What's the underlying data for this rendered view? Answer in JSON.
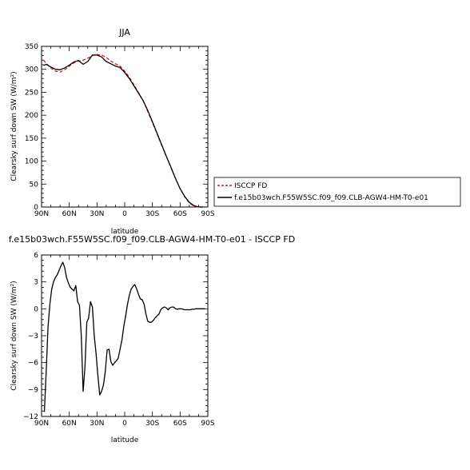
{
  "chart_data": [
    {
      "type": "line",
      "title": "JJA",
      "xlabel": "latitude",
      "ylabel": "Clearsky surf down SW (W/m²)",
      "xlim": [
        90,
        -90
      ],
      "ylim": [
        0,
        350
      ],
      "xticks": [
        90,
        60,
        30,
        0,
        -30,
        -60,
        -90
      ],
      "xtick_labels": [
        "90N",
        "60N",
        "30N",
        "0",
        "30S",
        "60S",
        "90S"
      ],
      "yticks": [
        0,
        50,
        100,
        150,
        200,
        250,
        300,
        350
      ],
      "ytick_labels": [
        "0",
        "50",
        "100",
        "150",
        "200",
        "250",
        "300",
        "350"
      ],
      "grid": false,
      "legend": "right, outside plot",
      "series": [
        {
          "name": "ISCCP FD",
          "color": "#e0161b",
          "dash": true,
          "x": [
            88,
            85,
            80,
            75,
            70,
            65,
            60,
            55,
            50,
            45,
            40,
            35,
            30,
            25,
            20,
            15,
            10,
            5,
            0,
            -5,
            -10,
            -15,
            -20,
            -25,
            -30,
            -35,
            -40,
            -45,
            -50,
            -55,
            -60,
            -65,
            -70,
            -75,
            -78,
            -82,
            -85
          ],
          "values": [
            320,
            313,
            303,
            296,
            294,
            299,
            307,
            314,
            318,
            320,
            324,
            330,
            332,
            331,
            326,
            318,
            312,
            307,
            296,
            283,
            266,
            249,
            231,
            208,
            184,
            160,
            135,
            110,
            86,
            62,
            40,
            22,
            9,
            2,
            0.5,
            0,
            0
          ]
        },
        {
          "name": "f.e15b03wch.F55W5SC.f09_f09.CLB-AGW4-HM-T0-e01",
          "color": "#000000",
          "dash": false,
          "x": [
            88,
            85,
            80,
            75,
            70,
            65,
            60,
            55,
            50,
            45,
            40,
            35,
            30,
            25,
            20,
            15,
            10,
            5,
            0,
            -5,
            -10,
            -15,
            -20,
            -25,
            -30,
            -35,
            -40,
            -45,
            -50,
            -55,
            -60,
            -65,
            -70,
            -75,
            -78,
            -82,
            -85
          ],
          "values": [
            308,
            311,
            305,
            300,
            299,
            303,
            309,
            316,
            319,
            311,
            317,
            331,
            331,
            327,
            317,
            312,
            307,
            304,
            293,
            280,
            264,
            248,
            232,
            210,
            186,
            161,
            136,
            111,
            87,
            62,
            40,
            23,
            10,
            3,
            1,
            0,
            0
          ]
        }
      ]
    },
    {
      "type": "line",
      "title": "f.e15b03wch.F55W5SC.f09_f09.CLB-AGW4-HM-T0-e01 - ISCCP FD",
      "xlabel": "latitude",
      "ylabel": "Clearsky surf down SW (W/m²)",
      "xlim": [
        90,
        -90
      ],
      "ylim": [
        -12,
        6
      ],
      "xticks": [
        90,
        60,
        30,
        0,
        -30,
        -60,
        -90
      ],
      "xtick_labels": [
        "90N",
        "60N",
        "30N",
        "0",
        "30S",
        "60S",
        "90S"
      ],
      "yticks": [
        -12,
        -9,
        -6,
        -3,
        0,
        3,
        6
      ],
      "ytick_labels": [
        "−12",
        "−9",
        "−6",
        "−3",
        "0",
        "3",
        "6"
      ],
      "grid": false,
      "series": [
        {
          "color": "#000000",
          "x": [
            87,
            85,
            83,
            81,
            79,
            77,
            75,
            73,
            71,
            69,
            67,
            65,
            63,
            61,
            59,
            57,
            55,
            53,
            51,
            49,
            47,
            45,
            43,
            41,
            39,
            37,
            35,
            33,
            31,
            29,
            27,
            25,
            23,
            21,
            19,
            17,
            15,
            13,
            11,
            9,
            7,
            5,
            3,
            1,
            -1,
            -3,
            -5,
            -7,
            -9,
            -11,
            -13,
            -15,
            -17,
            -19,
            -21,
            -23,
            -25,
            -27,
            -29,
            -31,
            -33,
            -35,
            -37,
            -39,
            -41,
            -43,
            -45,
            -47,
            -49,
            -51,
            -53,
            -55,
            -57,
            -59,
            -61,
            -63,
            -65,
            -67,
            -69,
            -71,
            -73,
            -75,
            -77,
            -79,
            -81,
            -83,
            -85,
            -87
          ],
          "values": [
            -11.5,
            -7,
            -2,
            0.5,
            2.2,
            3,
            3.5,
            3.8,
            4.3,
            4.8,
            5.2,
            4.6,
            3.5,
            2.9,
            2.4,
            2.2,
            2.0,
            2.6,
            0.8,
            0.4,
            -3,
            -9.2,
            -6.5,
            -1.5,
            -1.0,
            0.8,
            0.2,
            -3,
            -5.0,
            -7.5,
            -9.6,
            -9.2,
            -8.5,
            -7.0,
            -4.6,
            -4.5,
            -5.9,
            -6.3,
            -6.0,
            -5.8,
            -5.5,
            -4.5,
            -3.5,
            -2,
            -0.8,
            0.5,
            1.5,
            2.2,
            2.5,
            2.7,
            2.2,
            1.6,
            1.1,
            1.0,
            0.5,
            -0.6,
            -1.4,
            -1.5,
            -1.5,
            -1.3,
            -1.0,
            -0.8,
            -0.6,
            -0.1,
            0.1,
            0.2,
            0.1,
            -0.1,
            0.1,
            0.2,
            0.2,
            0.0,
            -0.05,
            0.0,
            0.0,
            -0.05,
            -0.1,
            -0.1,
            -0.1,
            -0.1,
            -0.05,
            -0.05,
            0.0,
            0.0,
            0.0,
            0.0,
            0.0,
            0.0
          ]
        }
      ]
    }
  ]
}
